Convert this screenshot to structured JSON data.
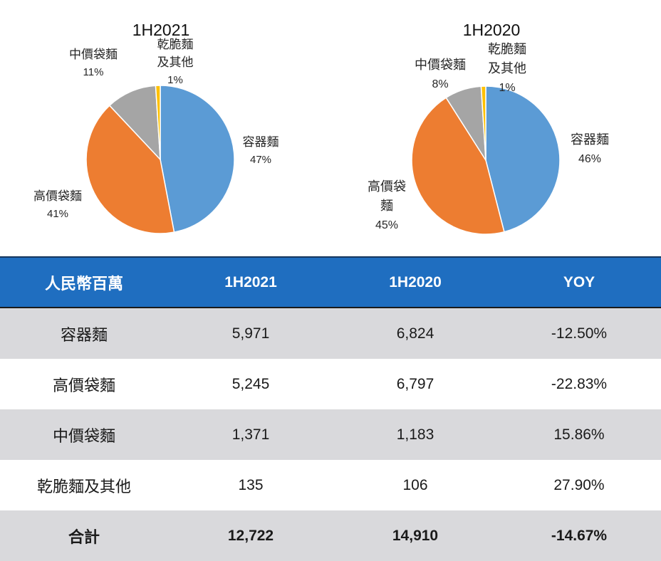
{
  "chart_data": [
    {
      "type": "pie",
      "title": "1H2021",
      "categories": [
        "容器麵",
        "高價袋麵",
        "中價袋麵",
        "乾脆麵及其他"
      ],
      "values": [
        47,
        41,
        11,
        1
      ],
      "value_labels": [
        "47%",
        "41%",
        "11%",
        "1%"
      ],
      "colors": [
        "#5B9BD5",
        "#ED7D31",
        "#A5A5A5",
        "#FFC000"
      ]
    },
    {
      "type": "pie",
      "title": "1H2020",
      "categories": [
        "容器麵",
        "高價袋麵",
        "中價袋麵",
        "乾脆麵及其他"
      ],
      "values": [
        46,
        45,
        8,
        1
      ],
      "value_labels": [
        "46%",
        "45%",
        "8%",
        "1%"
      ],
      "colors": [
        "#5B9BD5",
        "#ED7D31",
        "#A5A5A5",
        "#FFC000"
      ]
    },
    {
      "type": "table",
      "columns": [
        "人民幣百萬",
        "1H2021",
        "1H2020",
        "YOY"
      ],
      "rows": [
        [
          "容器麵",
          "5,971",
          "6,824",
          "-12.50%"
        ],
        [
          "高價袋麵",
          "5,245",
          "6,797",
          "-22.83%"
        ],
        [
          "中價袋麵",
          "1,371",
          "1,183",
          "15.86%"
        ],
        [
          "乾脆麵及其他",
          "135",
          "106",
          "27.90%"
        ],
        [
          "合計",
          "12,722",
          "14,910",
          "-14.67%"
        ]
      ],
      "header_color": "#1F6EC0",
      "stripe_color": "#D9D9DC"
    }
  ]
}
